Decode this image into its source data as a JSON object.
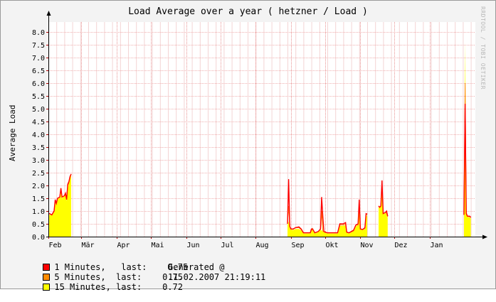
{
  "chart_data": {
    "type": "area",
    "title": "Load Average over a year ( hetzner / Load )",
    "ylabel": "Average Load",
    "watermark": "RRDTOOL / TOBI OETIKER",
    "ylim": [
      0,
      8.4
    ],
    "yticks": [
      "0.0",
      "0.5",
      "1.0",
      "1.5",
      "2.0",
      "2.5",
      "3.0",
      "3.5",
      "4.0",
      "4.5",
      "5.0",
      "5.5",
      "6.0",
      "6.5",
      "7.0",
      "7.5",
      "8.0"
    ],
    "xlim": [
      0,
      375
    ],
    "months": [
      {
        "label": "Feb",
        "day": 0
      },
      {
        "label": "Mär",
        "day": 29
      },
      {
        "label": "Apr",
        "day": 60
      },
      {
        "label": "Mai",
        "day": 90
      },
      {
        "label": "Jun",
        "day": 121
      },
      {
        "label": "Jul",
        "day": 151
      },
      {
        "label": "Aug",
        "day": 182
      },
      {
        "label": "Sep",
        "day": 213
      },
      {
        "label": "Okt",
        "day": 243
      },
      {
        "label": "Nov",
        "day": 274
      },
      {
        "label": "Dez",
        "day": 304
      },
      {
        "label": "Jan",
        "day": 335
      }
    ],
    "series": [
      {
        "name": "15 Minutes",
        "color": "#ffff00",
        "segments": [
          [
            [
              0,
              0.8
            ],
            [
              1,
              0.85
            ],
            [
              3,
              0.85
            ],
            [
              5,
              0.95
            ],
            [
              6,
              1.35
            ],
            [
              7,
              1.3
            ],
            [
              8,
              1.45
            ],
            [
              10,
              1.55
            ],
            [
              11,
              1.75
            ],
            [
              12,
              1.5
            ],
            [
              14,
              1.6
            ],
            [
              15,
              1.7
            ],
            [
              16,
              1.4
            ],
            [
              17,
              1.9
            ],
            [
              18,
              2.1
            ],
            [
              19,
              2.3
            ],
            [
              20,
              2.4
            ]
          ],
          [
            [
              210,
              0.45
            ],
            [
              211,
              0.6
            ],
            [
              212,
              0.35
            ],
            [
              213,
              0.28
            ],
            [
              215,
              0.25
            ],
            [
              217,
              0.3
            ],
            [
              220,
              0.3
            ],
            [
              222,
              0.25
            ],
            [
              224,
              0.12
            ],
            [
              226,
              0.12
            ],
            [
              230,
              0.12
            ],
            [
              232,
              0.3
            ],
            [
              234,
              0.12
            ],
            [
              237,
              0.18
            ],
            [
              239,
              0.28
            ],
            [
              241,
              0.2
            ],
            [
              243,
              0.15
            ],
            [
              245,
              0.12
            ],
            [
              248,
              0.12
            ],
            [
              252,
              0.12
            ],
            [
              254,
              0.12
            ],
            [
              256,
              0.42
            ],
            [
              259,
              0.42
            ],
            [
              261,
              0.45
            ],
            [
              262,
              0.15
            ],
            [
              264,
              0.12
            ],
            [
              268,
              0.2
            ],
            [
              270,
              0.4
            ],
            [
              272,
              0.45
            ],
            [
              273,
              1.2
            ],
            [
              274,
              0.3
            ],
            [
              276,
              0.25
            ],
            [
              278,
              0.3
            ],
            [
              279,
              0.75
            ],
            [
              280,
              0.85
            ]
          ],
          [
            [
              290,
              1.2
            ],
            [
              291,
              1.15
            ],
            [
              292,
              1.2
            ],
            [
              293,
              1.8
            ],
            [
              294,
              0.9
            ],
            [
              296,
              0.95
            ],
            [
              297,
              0.85
            ],
            [
              298,
              0.75
            ]
          ],
          [
            [
              365,
              0.85
            ],
            [
              366,
              7.6
            ],
            [
              367,
              1.0
            ],
            [
              368,
              0.8
            ],
            [
              369,
              0.75
            ],
            [
              370,
              0.75
            ],
            [
              371,
              0.72
            ]
          ]
        ]
      },
      {
        "name": "5 Minutes",
        "color": "#ff8c00",
        "segments": [
          [
            [
              0,
              0.85
            ],
            [
              1,
              0.9
            ],
            [
              3,
              0.85
            ],
            [
              5,
              1.0
            ],
            [
              6,
              1.4
            ],
            [
              7,
              1.3
            ],
            [
              8,
              1.5
            ],
            [
              10,
              1.55
            ],
            [
              11,
              1.8
            ],
            [
              12,
              1.55
            ],
            [
              14,
              1.6
            ],
            [
              15,
              1.7
            ],
            [
              16,
              1.45
            ],
            [
              17,
              2.0
            ],
            [
              18,
              2.1
            ],
            [
              19,
              2.3
            ],
            [
              20,
              2.45
            ]
          ],
          [
            [
              210,
              0.5
            ],
            [
              211,
              1.2
            ],
            [
              212,
              0.4
            ],
            [
              213,
              0.3
            ],
            [
              215,
              0.28
            ],
            [
              217,
              0.35
            ],
            [
              220,
              0.35
            ],
            [
              222,
              0.28
            ],
            [
              224,
              0.14
            ],
            [
              226,
              0.14
            ],
            [
              230,
              0.14
            ],
            [
              232,
              0.32
            ],
            [
              234,
              0.14
            ],
            [
              237,
              0.2
            ],
            [
              239,
              0.3
            ],
            [
              240,
              1.0
            ],
            [
              241,
              0.22
            ],
            [
              243,
              0.16
            ],
            [
              245,
              0.14
            ],
            [
              248,
              0.14
            ],
            [
              252,
              0.14
            ],
            [
              254,
              0.14
            ],
            [
              256,
              0.45
            ],
            [
              259,
              0.45
            ],
            [
              261,
              0.5
            ],
            [
              262,
              0.16
            ],
            [
              264,
              0.14
            ],
            [
              268,
              0.22
            ],
            [
              270,
              0.45
            ],
            [
              272,
              0.45
            ],
            [
              273,
              1.3
            ],
            [
              274,
              0.3
            ],
            [
              276,
              0.27
            ],
            [
              278,
              0.32
            ],
            [
              279,
              0.85
            ],
            [
              280,
              0.88
            ]
          ],
          [
            [
              290,
              1.2
            ],
            [
              291,
              1.15
            ],
            [
              292,
              1.2
            ],
            [
              293,
              2.0
            ],
            [
              294,
              0.9
            ],
            [
              296,
              0.95
            ],
            [
              297,
              0.9
            ],
            [
              298,
              0.78
            ]
          ],
          [
            [
              365,
              0.85
            ],
            [
              366,
              6.0
            ],
            [
              367,
              0.95
            ],
            [
              368,
              0.8
            ],
            [
              369,
              0.78
            ],
            [
              370,
              0.78
            ],
            [
              371,
              0.75
            ]
          ]
        ]
      },
      {
        "name": "1 Minutes",
        "color": "#ff0000",
        "segments": [
          [
            [
              0,
              0.9
            ],
            [
              1,
              0.9
            ],
            [
              3,
              0.85
            ],
            [
              5,
              1.0
            ],
            [
              6,
              1.45
            ],
            [
              7,
              1.3
            ],
            [
              8,
              1.5
            ],
            [
              10,
              1.55
            ],
            [
              11,
              1.9
            ],
            [
              12,
              1.55
            ],
            [
              14,
              1.6
            ],
            [
              15,
              1.7
            ],
            [
              16,
              1.45
            ],
            [
              17,
              2.05
            ],
            [
              18,
              2.15
            ],
            [
              19,
              2.35
            ],
            [
              20,
              2.45
            ]
          ],
          [
            [
              210,
              0.5
            ],
            [
              211,
              2.25
            ],
            [
              212,
              0.4
            ],
            [
              213,
              0.3
            ],
            [
              215,
              0.3
            ],
            [
              217,
              0.35
            ],
            [
              220,
              0.38
            ],
            [
              222,
              0.3
            ],
            [
              224,
              0.15
            ],
            [
              226,
              0.15
            ],
            [
              230,
              0.15
            ],
            [
              231,
              0.3
            ],
            [
              232,
              0.3
            ],
            [
              234,
              0.15
            ],
            [
              237,
              0.2
            ],
            [
              239,
              0.3
            ],
            [
              240,
              1.55
            ],
            [
              241,
              0.8
            ],
            [
              242,
              0.2
            ],
            [
              243,
              0.18
            ],
            [
              245,
              0.15
            ],
            [
              248,
              0.15
            ],
            [
              252,
              0.15
            ],
            [
              254,
              0.15
            ],
            [
              256,
              0.5
            ],
            [
              259,
              0.5
            ],
            [
              261,
              0.55
            ],
            [
              262,
              0.18
            ],
            [
              264,
              0.15
            ],
            [
              268,
              0.25
            ],
            [
              270,
              0.45
            ],
            [
              272,
              0.5
            ],
            [
              273,
              1.45
            ],
            [
              274,
              0.3
            ],
            [
              276,
              0.28
            ],
            [
              278,
              0.35
            ],
            [
              279,
              0.9
            ],
            [
              280,
              0.88
            ]
          ],
          [
            [
              290,
              1.2
            ],
            [
              291,
              1.15
            ],
            [
              292,
              1.2
            ],
            [
              293,
              2.2
            ],
            [
              294,
              0.9
            ],
            [
              296,
              0.95
            ],
            [
              297,
              1.0
            ],
            [
              298,
              0.8
            ]
          ],
          [
            [
              365,
              0.85
            ],
            [
              366,
              5.2
            ],
            [
              367,
              0.9
            ],
            [
              368,
              0.8
            ],
            [
              369,
              0.8
            ],
            [
              370,
              0.8
            ],
            [
              371,
              0.75
            ]
          ]
        ]
      }
    ]
  },
  "legend": [
    {
      "label": "1 Minutes,   last:    0.75",
      "color": "#ff0000"
    },
    {
      "label": "5 Minutes,  last:    0.75",
      "color": "#ff8c00"
    },
    {
      "label": "15 Minutes, last:    0.72",
      "color": "#ffff00"
    }
  ],
  "generated_label": "Generated @",
  "generated_at": "11.02.2007 21:19:11"
}
